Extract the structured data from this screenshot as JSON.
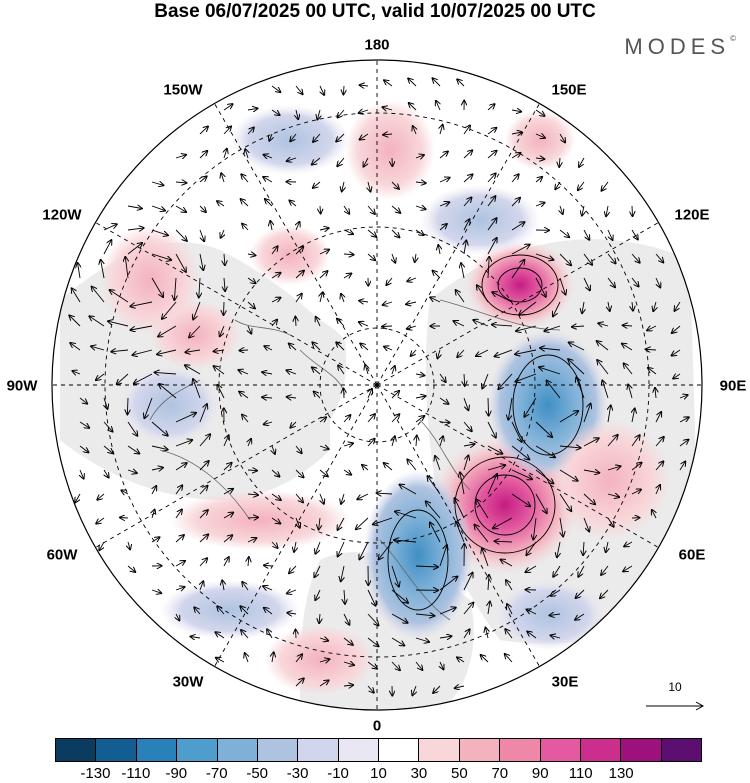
{
  "title": "Base 06/07/2025 00 UTC, valid 10/07/2025 00 UTC",
  "brand": "MODES",
  "brand_mark": "©",
  "longitude_labels": {
    "lon_180": "180",
    "lon_150e": "150E",
    "lon_120e": "120E",
    "lon_90e": "90E",
    "lon_60e": "60E",
    "lon_30e": "30E",
    "lon_0": "0",
    "lon_30w": "30W",
    "lon_60w": "60W",
    "lon_90w": "90W",
    "lon_120w": "120W",
    "lon_150w": "150W"
  },
  "reference_vector": {
    "label": "10"
  },
  "colorbar": {
    "colors": [
      "#0b3b5e",
      "#145d92",
      "#2a80b9",
      "#4f9dcc",
      "#7fb1d8",
      "#aec3e0",
      "#d2d6ec",
      "#e9e7f3",
      "#ffffff",
      "#f8d6d9",
      "#f4b2be",
      "#ef87a9",
      "#e35aa0",
      "#cc2e8d",
      "#9d117d",
      "#5c0f70"
    ],
    "tick_labels": [
      "-130",
      "-110",
      "-90",
      "-70",
      "-50",
      "-30",
      "-10",
      "10",
      "30",
      "50",
      "70",
      "90",
      "110",
      "130"
    ]
  },
  "colors": {
    "land_gray": "#ebebeb",
    "grid_line": "#000000"
  }
}
